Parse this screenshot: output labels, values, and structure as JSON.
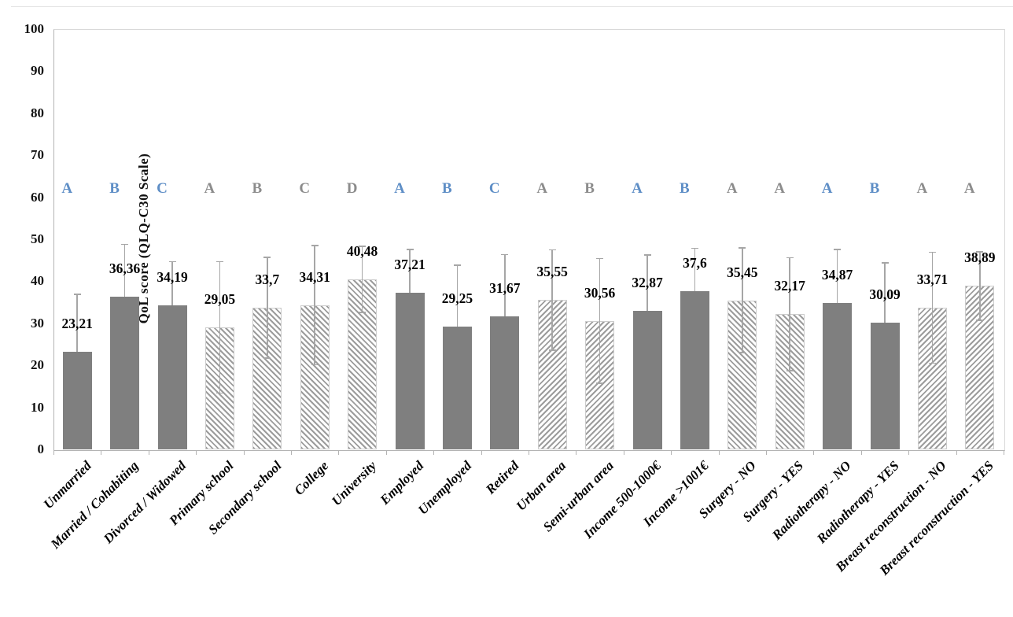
{
  "chart_data": {
    "type": "bar",
    "title": "",
    "ylabel": "QoL score (QLQ-C30  Scale)",
    "xlabel": "",
    "ylim": [
      0,
      100
    ],
    "yticks": [
      0,
      10,
      20,
      30,
      40,
      50,
      60,
      70,
      80,
      90,
      100
    ],
    "grid": false,
    "legend": "none",
    "categories": [
      "Unmarried",
      "Married / Cohabiting",
      "Divorced / Widowed",
      "Primary school",
      "Secondary school",
      "College",
      "University",
      "Employed",
      "Unemployed",
      "Retired",
      "Urban area",
      "Semi-urban area",
      "Income 500-1000€",
      "Income >1001€",
      "Surgery - NO",
      "Surgery - YES",
      "Radiotherapy - NO",
      "Radiotherapy - YES",
      "Breast reconstruction - NO",
      "Breast reconstruction - YES"
    ],
    "values": [
      23.21,
      36.36,
      34.19,
      29.05,
      33.7,
      34.31,
      40.48,
      37.21,
      29.25,
      31.67,
      35.55,
      30.56,
      32.87,
      37.6,
      35.45,
      32.17,
      34.87,
      30.09,
      33.71,
      38.89
    ],
    "value_labels": [
      "23,21",
      "36,36",
      "34,19",
      "29,05",
      "33,7",
      "34,31",
      "40,48",
      "37,21",
      "29,25",
      "31,67",
      "35,55",
      "30,56",
      "32,87",
      "37,6",
      "35,45",
      "32,17",
      "34,87",
      "30,09",
      "33,71",
      "38,89"
    ],
    "error_sd": [
      13.8,
      12.6,
      10.6,
      15.8,
      12.1,
      14.3,
      8.0,
      10.5,
      14.7,
      14.8,
      12.1,
      15.0,
      13.5,
      10.4,
      12.6,
      13.6,
      12.8,
      14.4,
      13.3,
      8.3
    ],
    "bar_styles": [
      "solid",
      "solid",
      "solid",
      "hatch-down",
      "hatch-down",
      "hatch-down",
      "hatch-down",
      "solid",
      "solid",
      "solid",
      "hatch-up",
      "hatch-up",
      "solid",
      "solid",
      "hatch-down",
      "hatch-down",
      "solid",
      "solid",
      "hatch-up",
      "hatch-up"
    ],
    "significance_letters": [
      {
        "text": "A",
        "color": "blue"
      },
      {
        "text": "B",
        "color": "blue"
      },
      {
        "text": "C",
        "color": "blue"
      },
      {
        "text": "A",
        "color": "gray"
      },
      {
        "text": "B",
        "color": "gray"
      },
      {
        "text": "C",
        "color": "gray"
      },
      {
        "text": "D",
        "color": "gray"
      },
      {
        "text": "A",
        "color": "blue"
      },
      {
        "text": "B",
        "color": "blue"
      },
      {
        "text": "C",
        "color": "blue"
      },
      {
        "text": "A",
        "color": "gray"
      },
      {
        "text": "B",
        "color": "gray"
      },
      {
        "text": "A",
        "color": "blue"
      },
      {
        "text": "B",
        "color": "blue"
      },
      {
        "text": "A",
        "color": "gray"
      },
      {
        "text": "A",
        "color": "gray"
      },
      {
        "text": "A",
        "color": "blue"
      },
      {
        "text": "B",
        "color": "blue"
      },
      {
        "text": "A",
        "color": "gray"
      },
      {
        "text": "A",
        "color": "gray"
      }
    ]
  },
  "colors": {
    "bar_solid": "#7f7f7f",
    "hatch_stripe": "#9c9c9c",
    "error_bar": "#a6a6a6",
    "letter_blue": "#5e8ec6",
    "letter_gray": "#8c8c8c",
    "axis_line": "#b3b3b3",
    "plot_border": "#d9d9d9",
    "text": "#000000"
  }
}
